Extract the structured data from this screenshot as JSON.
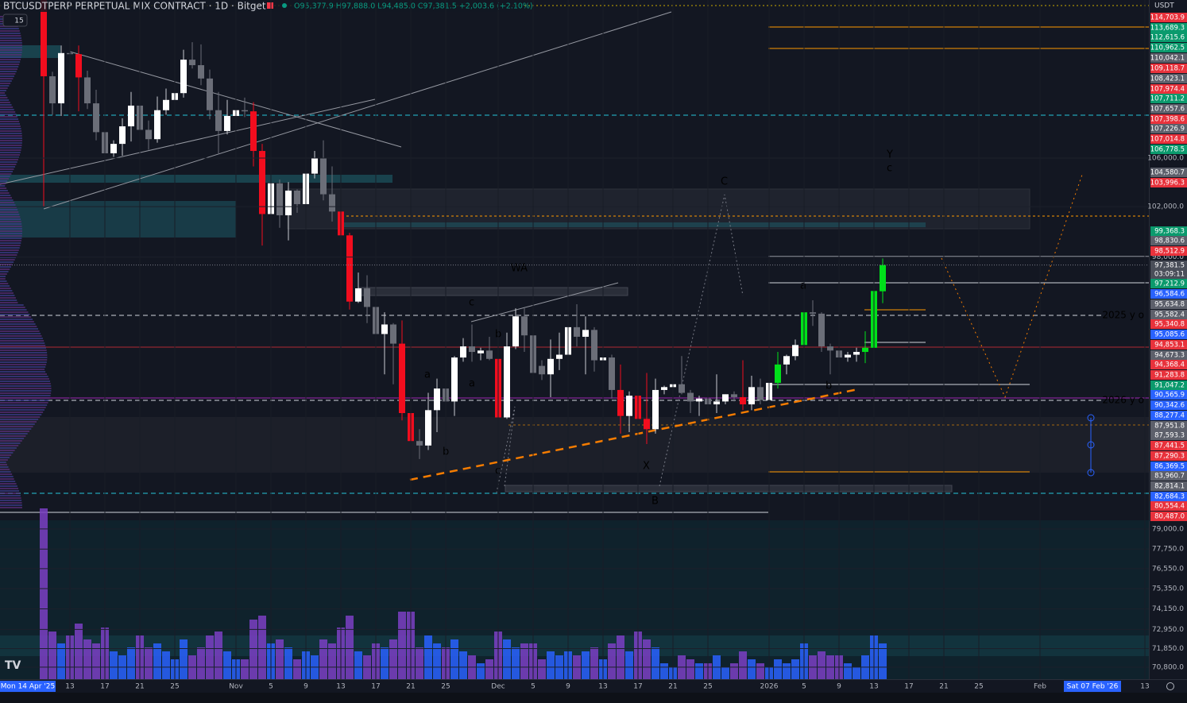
{
  "chart_data": {
    "type": "candlestick",
    "title": "BTCUSDTPERP PERPETUAL MIX CONTRACT · 1D · Bitget",
    "ohlc_text": "O95,377.9 H97,888.0 L94,485.0 C97,381.5 +2,003.6 (+2.10%)",
    "interval_badge": "15",
    "currency": "USDT",
    "log_scale": true,
    "ylim": [
      70130,
      120150
    ],
    "yticks": [
      {
        "value": 106000,
        "label": "106,000.0"
      },
      {
        "value": 102000,
        "label": "102,000.0"
      },
      {
        "value": 98000,
        "label": "98,000.0"
      },
      {
        "value": 79000,
        "label": "79,000.0"
      },
      {
        "value": 77750,
        "label": "77,750.0"
      },
      {
        "value": 76550,
        "label": "76,550.0"
      },
      {
        "value": 75350,
        "label": "75,350.0"
      },
      {
        "value": 74150,
        "label": "74,150.0"
      },
      {
        "value": 72950,
        "label": "72,950.0"
      },
      {
        "value": 71850,
        "label": "71,850.0"
      },
      {
        "value": 70800,
        "label": "70,800.0"
      }
    ],
    "up_color": "#ffffff",
    "down_color": "#6b6e78",
    "volume_up_color": "#2962ff",
    "volume_down_color": "#7b3fc4",
    "candles": [
      {
        "o": 121700,
        "h": 122500,
        "l": 102000,
        "c": 113100,
        "color": "#f20d1e"
      },
      {
        "o": 113100,
        "h": 113500,
        "l": 109700,
        "c": 110700
      },
      {
        "o": 110700,
        "h": 115900,
        "l": 109600,
        "c": 115200
      },
      {
        "o": 115200,
        "h": 116000,
        "l": 113000,
        "c": 115100
      },
      {
        "o": 115100,
        "h": 115900,
        "l": 110000,
        "c": 113000,
        "color": "#f20d1e"
      },
      {
        "o": 113000,
        "h": 113600,
        "l": 110200,
        "c": 110700
      },
      {
        "o": 110700,
        "h": 111900,
        "l": 107500,
        "c": 108200
      },
      {
        "o": 108200,
        "h": 109000,
        "l": 103600,
        "c": 106400
      },
      {
        "o": 106400,
        "h": 107500,
        "l": 106100,
        "c": 107200
      },
      {
        "o": 107200,
        "h": 109400,
        "l": 106200,
        "c": 108700
      },
      {
        "o": 108700,
        "h": 111700,
        "l": 107400,
        "c": 110500
      },
      {
        "o": 110500,
        "h": 114000,
        "l": 107500,
        "c": 108400
      },
      {
        "o": 108400,
        "h": 109200,
        "l": 106700,
        "c": 107600
      },
      {
        "o": 107600,
        "h": 111300,
        "l": 107300,
        "c": 110100
      },
      {
        "o": 110100,
        "h": 112000,
        "l": 109700,
        "c": 111000
      },
      {
        "o": 111000,
        "h": 111800,
        "l": 110700,
        "c": 111600
      },
      {
        "o": 111600,
        "h": 115500,
        "l": 111200,
        "c": 114600
      },
      {
        "o": 114600,
        "h": 116200,
        "l": 113800,
        "c": 114100
      },
      {
        "o": 114100,
        "h": 116000,
        "l": 112300,
        "c": 112900
      },
      {
        "o": 112900,
        "h": 113700,
        "l": 109300,
        "c": 110100
      },
      {
        "o": 110100,
        "h": 111700,
        "l": 106400,
        "c": 108300
      },
      {
        "o": 108300,
        "h": 111000,
        "l": 108000,
        "c": 109600
      },
      {
        "o": 109600,
        "h": 110600,
        "l": 109400,
        "c": 110100
      },
      {
        "o": 110100,
        "h": 111200,
        "l": 109500,
        "c": 110000
      },
      {
        "o": 110000,
        "h": 110800,
        "l": 105300,
        "c": 106600,
        "color": "#f20d1e"
      },
      {
        "o": 106600,
        "h": 107200,
        "l": 98900,
        "c": 101400,
        "color": "#f20d1e"
      },
      {
        "o": 101400,
        "h": 104500,
        "l": 98900,
        "c": 103900
      },
      {
        "o": 103900,
        "h": 104200,
        "l": 100300,
        "c": 101300
      },
      {
        "o": 101300,
        "h": 104000,
        "l": 99300,
        "c": 103300
      },
      {
        "o": 103300,
        "h": 103400,
        "l": 101500,
        "c": 102200
      },
      {
        "o": 102200,
        "h": 105000,
        "l": 101400,
        "c": 104700
      },
      {
        "o": 104700,
        "h": 106600,
        "l": 104300,
        "c": 106000
      },
      {
        "o": 106000,
        "h": 107500,
        "l": 102500,
        "c": 103000
      },
      {
        "o": 103000,
        "h": 105300,
        "l": 100800,
        "c": 101600
      },
      {
        "o": 101600,
        "h": 104000,
        "l": 98000,
        "c": 99700,
        "color": "#f20d1e"
      },
      {
        "o": 99700,
        "h": 99900,
        "l": 94000,
        "c": 94600,
        "color": "#f20d1e"
      },
      {
        "o": 94600,
        "h": 96800,
        "l": 94500,
        "c": 95600
      },
      {
        "o": 95600,
        "h": 96600,
        "l": 93000,
        "c": 94200
      },
      {
        "o": 94200,
        "h": 96000,
        "l": 91200,
        "c": 92200
      },
      {
        "o": 92200,
        "h": 93800,
        "l": 89300,
        "c": 92900
      },
      {
        "o": 92900,
        "h": 93000,
        "l": 88600,
        "c": 91500
      },
      {
        "o": 91500,
        "h": 93200,
        "l": 86100,
        "c": 86600,
        "color": "#f20d1e"
      },
      {
        "o": 86600,
        "h": 87500,
        "l": 80600,
        "c": 84700,
        "color": "#f20d1e"
      },
      {
        "o": 84700,
        "h": 85500,
        "l": 83500,
        "c": 84400
      },
      {
        "o": 84400,
        "h": 88000,
        "l": 84100,
        "c": 86800
      },
      {
        "o": 86800,
        "h": 89000,
        "l": 85300,
        "c": 88300
      },
      {
        "o": 88300,
        "h": 88800,
        "l": 86200,
        "c": 87400
      },
      {
        "o": 87400,
        "h": 90600,
        "l": 86400,
        "c": 90500
      },
      {
        "o": 90500,
        "h": 91900,
        "l": 90200,
        "c": 91300
      },
      {
        "o": 91300,
        "h": 92900,
        "l": 90200,
        "c": 90900
      },
      {
        "o": 90800,
        "h": 91200,
        "l": 90300,
        "c": 91000
      },
      {
        "o": 91000,
        "h": 92000,
        "l": 90300,
        "c": 90400
      },
      {
        "o": 90400,
        "h": 90500,
        "l": 83800,
        "c": 86300,
        "color": "#f20d1e"
      },
      {
        "o": 86300,
        "h": 92300,
        "l": 86200,
        "c": 91300
      },
      {
        "o": 91300,
        "h": 94100,
        "l": 91100,
        "c": 93500
      },
      {
        "o": 93500,
        "h": 94100,
        "l": 90900,
        "c": 92100
      },
      {
        "o": 92100,
        "h": 92700,
        "l": 88100,
        "c": 89400
      },
      {
        "o": 89900,
        "h": 90300,
        "l": 88900,
        "c": 89300
      },
      {
        "o": 89300,
        "h": 91800,
        "l": 87700,
        "c": 90400
      },
      {
        "o": 90400,
        "h": 92300,
        "l": 89600,
        "c": 90700
      },
      {
        "o": 90700,
        "h": 94600,
        "l": 89600,
        "c": 92700
      },
      {
        "o": 92700,
        "h": 94400,
        "l": 91300,
        "c": 92000
      },
      {
        "o": 92000,
        "h": 93500,
        "l": 89300,
        "c": 92500
      },
      {
        "o": 92500,
        "h": 92700,
        "l": 89500,
        "c": 90300
      },
      {
        "o": 90300,
        "h": 90600,
        "l": 89800,
        "c": 90500
      },
      {
        "o": 90500,
        "h": 90700,
        "l": 87600,
        "c": 88200
      },
      {
        "o": 88200,
        "h": 90000,
        "l": 85200,
        "c": 86400,
        "color": "#f20d1e"
      },
      {
        "o": 86400,
        "h": 88100,
        "l": 85300,
        "c": 87800
      },
      {
        "o": 87800,
        "h": 90400,
        "l": 85400,
        "c": 86200,
        "color": "#f20d1e"
      },
      {
        "o": 86200,
        "h": 89400,
        "l": 84500,
        "c": 85500,
        "color": "#f20d1e"
      },
      {
        "o": 85500,
        "h": 89000,
        "l": 85200,
        "c": 88200
      },
      {
        "o": 88200,
        "h": 88500,
        "l": 87900,
        "c": 88400
      },
      {
        "o": 88400,
        "h": 89000,
        "l": 87700,
        "c": 88600
      },
      {
        "o": 88600,
        "h": 90600,
        "l": 87900,
        "c": 88000
      },
      {
        "o": 88000,
        "h": 88200,
        "l": 86600,
        "c": 87400
      },
      {
        "o": 87400,
        "h": 87800,
        "l": 86400,
        "c": 87600
      },
      {
        "o": 87600,
        "h": 88000,
        "l": 86900,
        "c": 87200
      },
      {
        "o": 87200,
        "h": 89300,
        "l": 86600,
        "c": 87400
      },
      {
        "o": 87400,
        "h": 87900,
        "l": 87200,
        "c": 87900
      },
      {
        "o": 87900,
        "h": 88100,
        "l": 87400,
        "c": 87700
      },
      {
        "o": 87700,
        "h": 90300,
        "l": 86800,
        "c": 87200,
        "color": "#f20d1e"
      },
      {
        "o": 87200,
        "h": 89200,
        "l": 86800,
        "c": 88400
      },
      {
        "o": 88400,
        "h": 89000,
        "l": 87200,
        "c": 87500
      },
      {
        "o": 87500,
        "h": 88900,
        "l": 87400,
        "c": 88700
      },
      {
        "o": 88700,
        "h": 90900,
        "l": 88300,
        "c": 90000,
        "color": "#00e01a"
      },
      {
        "o": 90000,
        "h": 90700,
        "l": 89300,
        "c": 90600
      },
      {
        "o": 90600,
        "h": 91800,
        "l": 90300,
        "c": 91400
      },
      {
        "o": 91400,
        "h": 94800,
        "l": 91200,
        "c": 93800,
        "color": "#00e01a"
      },
      {
        "o": 93800,
        "h": 94700,
        "l": 92800,
        "c": 93700
      },
      {
        "o": 93700,
        "h": 93800,
        "l": 90900,
        "c": 91300
      },
      {
        "o": 91300,
        "h": 91500,
        "l": 89300,
        "c": 91000
      },
      {
        "o": 91000,
        "h": 91800,
        "l": 89600,
        "c": 90500
      },
      {
        "o": 90500,
        "h": 90900,
        "l": 90200,
        "c": 90700
      },
      {
        "o": 90700,
        "h": 91200,
        "l": 90200,
        "c": 90900
      },
      {
        "o": 90900,
        "h": 92400,
        "l": 90100,
        "c": 91200,
        "color": "#00e01a"
      },
      {
        "o": 91200,
        "h": 96300,
        "l": 91000,
        "c": 95400,
        "color": "#00e01a"
      },
      {
        "o": 95377.9,
        "h": 97888,
        "l": 94485,
        "c": 97381.5,
        "color": "#00e01a"
      }
    ],
    "volumes": [
      215,
      60,
      45,
      55,
      70,
      50,
      45,
      65,
      35,
      30,
      40,
      55,
      40,
      45,
      35,
      25,
      50,
      30,
      40,
      55,
      60,
      35,
      25,
      25,
      75,
      80,
      45,
      50,
      40,
      25,
      35,
      30,
      50,
      45,
      65,
      80,
      35,
      30,
      45,
      40,
      50,
      85,
      85,
      40,
      55,
      45,
      40,
      50,
      35,
      30,
      20,
      25,
      60,
      50,
      40,
      45,
      45,
      25,
      35,
      30,
      35,
      30,
      35,
      40,
      25,
      45,
      55,
      35,
      60,
      50,
      40,
      20,
      15,
      30,
      25,
      20,
      20,
      30,
      15,
      20,
      35,
      25,
      20,
      15,
      25,
      20,
      25,
      45,
      30,
      35,
      30,
      30,
      20,
      15,
      30,
      55,
      45
    ],
    "xticks": [
      {
        "value": 3,
        "label": "13"
      },
      {
        "value": 7,
        "label": "17"
      },
      {
        "value": 11,
        "label": "21"
      },
      {
        "value": 15,
        "label": "25"
      },
      {
        "value": 22,
        "label": "Nov"
      },
      {
        "value": 26,
        "label": "5"
      },
      {
        "value": 30,
        "label": "9"
      },
      {
        "value": 34,
        "label": "13"
      },
      {
        "value": 38,
        "label": "17"
      },
      {
        "value": 42,
        "label": "21"
      },
      {
        "value": 46,
        "label": "25"
      },
      {
        "value": 52,
        "label": "Dec"
      },
      {
        "value": 56,
        "label": "5"
      },
      {
        "value": 60,
        "label": "9"
      },
      {
        "value": 64,
        "label": "13"
      },
      {
        "value": 68,
        "label": "17"
      },
      {
        "value": 72,
        "label": "21"
      },
      {
        "value": 76,
        "label": "25"
      },
      {
        "value": 83,
        "label": "2026"
      },
      {
        "value": 87,
        "label": "5"
      },
      {
        "value": 91,
        "label": "9"
      },
      {
        "value": 95,
        "label": "13"
      },
      {
        "value": 99,
        "label": "17"
      },
      {
        "value": 103,
        "label": "21"
      },
      {
        "value": 107,
        "label": "25"
      },
      {
        "value": 114,
        "label": "Feb"
      },
      {
        "value": 126,
        "label": "13"
      }
    ],
    "crosshair_x": {
      "value": 120,
      "label": "Sat 07 Feb '26"
    },
    "range_start_label": "Mon 14 Apr '25",
    "countdown": "03:09:11",
    "price_tags": [
      {
        "value": 114703.9,
        "label": "114,703.9",
        "color": "#e8323c"
      },
      {
        "value": 113689.3,
        "label": "113,689.3",
        "color": "#0b9a6d"
      },
      {
        "value": 112615.6,
        "label": "112,615.6",
        "color": "#0b9a6d"
      },
      {
        "value": 110962.5,
        "label": "110,962.5",
        "color": "#0b9a6d"
      },
      {
        "value": 110042.1,
        "label": "110,042.1",
        "color": "#5d606b"
      },
      {
        "value": 109118.7,
        "label": "109,118.7",
        "color": "#e8323c"
      },
      {
        "value": 108423.1,
        "label": "108,423.1",
        "color": "#5d606b"
      },
      {
        "value": 107974.4,
        "label": "107,974.4",
        "color": "#e8323c"
      },
      {
        "value": 107711.2,
        "label": "107,711.2",
        "color": "#0b9a6d"
      },
      {
        "value": 107657.6,
        "label": "107,657.6",
        "color": "#5d606b"
      },
      {
        "value": 107398.6,
        "label": "107,398.6",
        "color": "#e8323c"
      },
      {
        "value": 107226.9,
        "label": "107,226.9",
        "color": "#5d606b"
      },
      {
        "value": 107014.8,
        "label": "107,014.8",
        "color": "#e8323c"
      },
      {
        "value": 106778.5,
        "label": "106,778.5",
        "color": "#0b9a6d"
      },
      {
        "value": 104580.7,
        "label": "104,580.7",
        "color": "#5d606b"
      },
      {
        "value": 103996.3,
        "label": "103,996.3",
        "color": "#e8323c"
      },
      {
        "value": 99368.3,
        "label": "99,368.3",
        "color": "#0b9a6d"
      },
      {
        "value": 98830.6,
        "label": "98,830.6",
        "color": "#5d606b"
      },
      {
        "value": 98512.9,
        "label": "98,512.9",
        "color": "#e8323c"
      },
      {
        "value": 97381.5,
        "label": "97,381.5",
        "color": "#4a4e59"
      },
      {
        "value": 97212.9,
        "label": "97,212.9",
        "color": "#0b9a6d"
      },
      {
        "value": 96584.6,
        "label": "96,584.6",
        "color": "#2962ff"
      },
      {
        "value": 95634.8,
        "label": "95,634.8",
        "color": "#5d606b"
      },
      {
        "value": 95582.4,
        "label": "95,582.4",
        "color": "#5d606b"
      },
      {
        "value": 95340.8,
        "label": "95,340.8",
        "color": "#e8323c"
      },
      {
        "value": 95085.6,
        "label": "95,085.6",
        "color": "#2962ff"
      },
      {
        "value": 94853.1,
        "label": "94,853.1",
        "color": "#e8323c"
      },
      {
        "value": 94673.3,
        "label": "94,673.3",
        "color": "#5d606b"
      },
      {
        "value": 94368.4,
        "label": "94,368.4",
        "color": "#e8323c"
      },
      {
        "value": 91283.8,
        "label": "91,283.8",
        "color": "#e8323c"
      },
      {
        "value": 91047.2,
        "label": "91,047.2",
        "color": "#0b9a6d"
      },
      {
        "value": 90565.9,
        "label": "90,565.9",
        "color": "#2962ff"
      },
      {
        "value": 90342.6,
        "label": "90,342.6",
        "color": "#2962ff"
      },
      {
        "value": 88277.4,
        "label": "88,277.4",
        "color": "#2962ff"
      },
      {
        "value": 87951.8,
        "label": "87,951.8",
        "color": "#5d606b"
      },
      {
        "value": 87593.3,
        "label": "87,593.3",
        "color": "#5d606b"
      },
      {
        "value": 87441.5,
        "label": "87,441.5",
        "color": "#e8323c"
      },
      {
        "value": 87290.3,
        "label": "87,290.3",
        "color": "#e8323c"
      },
      {
        "value": 86369.5,
        "label": "86,369.5",
        "color": "#2962ff"
      },
      {
        "value": 83960.7,
        "label": "83,960.7",
        "color": "#5d606b"
      },
      {
        "value": 82814.1,
        "label": "82,814.1",
        "color": "#5d606b"
      },
      {
        "value": 82684.3,
        "label": "82,684.3",
        "color": "#2962ff"
      },
      {
        "value": 80554.4,
        "label": "80,554.4",
        "color": "#e8323c"
      },
      {
        "value": 80487.0,
        "label": "80,487.0",
        "color": "#e8323c"
      }
    ],
    "annotations": [
      {
        "text": "WA",
        "color": "#8a8d96"
      },
      {
        "text": "C",
        "color": "#8a8d96"
      },
      {
        "text": "Y",
        "color": "#8a8d96"
      },
      {
        "text": "c",
        "color": "#5b9cf6"
      },
      {
        "text": "c",
        "color": "#5b9cf6"
      },
      {
        "text": "b",
        "color": "#5b9cf6"
      },
      {
        "text": "a",
        "color": "#5b9cf6"
      },
      {
        "text": "a",
        "color": "#5b9cf6"
      },
      {
        "text": "b",
        "color": "#5b9cf6"
      },
      {
        "text": "c",
        "color": "#5b9cf6"
      },
      {
        "text": "X",
        "color": "#8a8d96"
      },
      {
        "text": "B",
        "color": "#8a8d96"
      },
      {
        "text": "a",
        "color": "#5b9cf6"
      },
      {
        "text": "b",
        "color": "#5b9cf6"
      },
      {
        "text": "2025 y o",
        "color": "#5b9cf6"
      },
      {
        "text": "2026 y o",
        "color": "#5b9cf6"
      }
    ]
  }
}
